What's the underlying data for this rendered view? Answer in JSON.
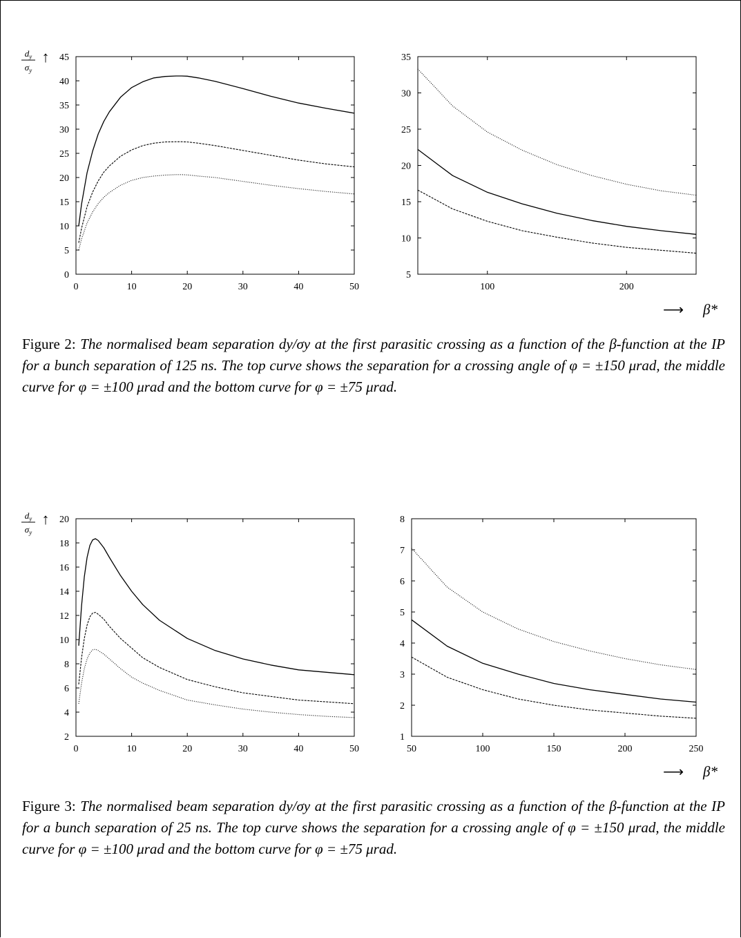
{
  "figures": [
    {
      "caption_lead": "Figure 2:",
      "caption_body": "The normalised beam separation dy/σy at the first parasitic crossing as a function of the β-function at the IP for a bunch separation of 125 ns. The top curve shows the separation for a crossing angle of φ = ±150 μrad, the middle curve for φ = ±100 μrad and the bottom curve for φ = ±75 μrad."
    },
    {
      "caption_lead": "Figure 3:",
      "caption_body": "The normalised beam separation dy/σy at the first parasitic crossing as a function of the β-function at the IP for a bunch separation of 25 ns. The top curve shows the separation for a crossing angle of φ = ±150 μrad, the middle curve for φ = ±100 μrad and the bottom curve for φ = ±75 μrad."
    }
  ],
  "y_axis_label": {
    "num": "d",
    "num_sub": "y",
    "den": "σ",
    "den_sub": "y",
    "arrow": "↑"
  },
  "x_axis_label": {
    "arrow": "⟶",
    "symbol": "β*"
  },
  "chart_data": [
    {
      "id": "fig2-left",
      "type": "line",
      "xlim": [
        0,
        50
      ],
      "ylim": [
        0,
        45
      ],
      "xticks": [
        0,
        10,
        20,
        30,
        40,
        50
      ],
      "yticks": [
        0,
        5,
        10,
        15,
        20,
        25,
        30,
        35,
        40,
        45
      ],
      "series": [
        {
          "style": "solid",
          "x": [
            0.5,
            1,
            2,
            3,
            4,
            5,
            6,
            8,
            10,
            12,
            14,
            16,
            18,
            19,
            20,
            22,
            25,
            30,
            35,
            40,
            45,
            50
          ],
          "y": [
            10,
            14.5,
            21,
            25.5,
            29,
            31.6,
            33.6,
            36.6,
            38.6,
            39.8,
            40.6,
            40.9,
            41.0,
            41.0,
            40.95,
            40.6,
            39.9,
            38.4,
            36.8,
            35.4,
            34.3,
            33.3
          ]
        },
        {
          "style": "dashed",
          "x": [
            0.5,
            1,
            2,
            3,
            4,
            5,
            6,
            8,
            10,
            12,
            14,
            16,
            18,
            19,
            20,
            22,
            25,
            30,
            35,
            40,
            45,
            50
          ],
          "y": [
            6.5,
            9.5,
            14,
            17,
            19.3,
            21.1,
            22.4,
            24.4,
            25.7,
            26.6,
            27.1,
            27.35,
            27.4,
            27.4,
            27.35,
            27.1,
            26.6,
            25.6,
            24.6,
            23.6,
            22.8,
            22.2
          ]
        },
        {
          "style": "dotted",
          "x": [
            0.5,
            1,
            2,
            3,
            4,
            5,
            6,
            8,
            10,
            12,
            14,
            16,
            18,
            19,
            20,
            22,
            25,
            30,
            35,
            40,
            45,
            50
          ],
          "y": [
            5,
            7.3,
            10.6,
            12.9,
            14.6,
            15.9,
            16.9,
            18.4,
            19.4,
            20.0,
            20.3,
            20.5,
            20.6,
            20.6,
            20.55,
            20.3,
            20.0,
            19.2,
            18.4,
            17.7,
            17.1,
            16.6
          ]
        }
      ]
    },
    {
      "id": "fig2-right",
      "type": "line",
      "xlim": [
        50,
        250
      ],
      "ylim": [
        5,
        35
      ],
      "xticks": [
        100,
        200
      ],
      "yticks": [
        5,
        10,
        15,
        20,
        25,
        30,
        35
      ],
      "series": [
        {
          "style": "solid",
          "x": [
            50,
            75,
            100,
            125,
            150,
            175,
            200,
            225,
            250
          ],
          "y": [
            22.2,
            18.6,
            16.3,
            14.7,
            13.4,
            12.4,
            11.6,
            11.0,
            10.5
          ]
        },
        {
          "style": "dashed",
          "x": [
            50,
            75,
            100,
            125,
            150,
            175,
            200,
            225,
            250
          ],
          "y": [
            16.6,
            14.0,
            12.3,
            11.0,
            10.1,
            9.3,
            8.7,
            8.3,
            7.9
          ]
        },
        {
          "style": "dotted",
          "x": [
            50,
            75,
            100,
            125,
            150,
            175,
            200,
            225,
            250
          ],
          "y": [
            33.3,
            28.2,
            24.6,
            22.1,
            20.1,
            18.6,
            17.4,
            16.5,
            15.9
          ]
        }
      ]
    },
    {
      "id": "fig3-left",
      "type": "line",
      "xlim": [
        0,
        50
      ],
      "ylim": [
        2,
        20
      ],
      "xticks": [
        0,
        10,
        20,
        30,
        40,
        50
      ],
      "yticks": [
        2,
        4,
        6,
        8,
        10,
        12,
        14,
        16,
        18,
        20
      ],
      "series": [
        {
          "style": "solid",
          "x": [
            0.5,
            1,
            1.5,
            2,
            2.5,
            3,
            3.5,
            4,
            5,
            6,
            8,
            10,
            12,
            15,
            20,
            25,
            30,
            35,
            40,
            45,
            50
          ],
          "y": [
            9.5,
            12.8,
            15.2,
            16.8,
            17.8,
            18.25,
            18.35,
            18.2,
            17.6,
            16.8,
            15.3,
            14.0,
            12.9,
            11.6,
            10.1,
            9.1,
            8.4,
            7.9,
            7.5,
            7.3,
            7.1
          ]
        },
        {
          "style": "dashed",
          "x": [
            0.5,
            1,
            1.5,
            2,
            2.5,
            3,
            3.5,
            4,
            5,
            6,
            8,
            10,
            12,
            15,
            20,
            25,
            30,
            35,
            40,
            45,
            50
          ],
          "y": [
            6.3,
            8.5,
            10.1,
            11.2,
            11.9,
            12.2,
            12.25,
            12.1,
            11.7,
            11.1,
            10.1,
            9.3,
            8.5,
            7.7,
            6.7,
            6.1,
            5.6,
            5.3,
            5.0,
            4.85,
            4.7
          ]
        },
        {
          "style": "dotted",
          "x": [
            0.5,
            1,
            1.5,
            2,
            2.5,
            3,
            3.5,
            4,
            5,
            6,
            8,
            10,
            12,
            15,
            20,
            25,
            30,
            35,
            40,
            45,
            50
          ],
          "y": [
            4.7,
            6.4,
            7.6,
            8.4,
            8.9,
            9.15,
            9.2,
            9.1,
            8.8,
            8.4,
            7.6,
            6.9,
            6.4,
            5.8,
            5.0,
            4.6,
            4.25,
            4.0,
            3.8,
            3.65,
            3.55
          ]
        }
      ]
    },
    {
      "id": "fig3-right",
      "type": "line",
      "xlim": [
        50,
        250
      ],
      "ylim": [
        1,
        8
      ],
      "xticks": [
        50,
        100,
        150,
        200,
        250
      ],
      "yticks": [
        1,
        2,
        3,
        4,
        5,
        6,
        7,
        8
      ],
      "series": [
        {
          "style": "solid",
          "x": [
            50,
            75,
            100,
            125,
            150,
            175,
            200,
            225,
            250
          ],
          "y": [
            4.75,
            3.9,
            3.35,
            3.0,
            2.7,
            2.5,
            2.35,
            2.2,
            2.1
          ]
        },
        {
          "style": "dashed",
          "x": [
            50,
            75,
            100,
            125,
            150,
            175,
            200,
            225,
            250
          ],
          "y": [
            3.55,
            2.9,
            2.5,
            2.2,
            2.0,
            1.85,
            1.75,
            1.65,
            1.58
          ]
        },
        {
          "style": "dotted",
          "x": [
            50,
            75,
            100,
            125,
            150,
            175,
            200,
            225,
            250
          ],
          "y": [
            7.05,
            5.8,
            5.0,
            4.45,
            4.05,
            3.75,
            3.5,
            3.3,
            3.15
          ]
        }
      ]
    }
  ]
}
